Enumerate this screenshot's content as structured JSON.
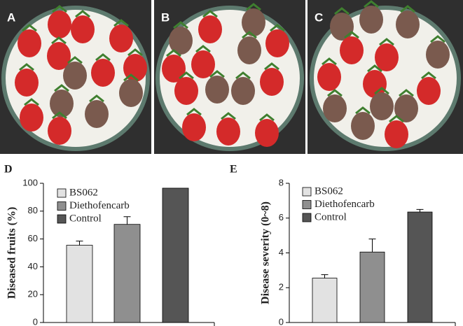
{
  "panels": [
    "A",
    "B",
    "C"
  ],
  "chart_data": [
    {
      "type": "bar",
      "panel_label": "D",
      "ylabel": "Diseased fruits (%)",
      "categories": [
        null
      ],
      "series": [
        {
          "name": "BS062",
          "color": "#e2e2e2",
          "values": [
            55.5
          ],
          "errors": [
            3
          ]
        },
        {
          "name": "Diethofencarb",
          "color": "#8f8f8f",
          "values": [
            70.5
          ],
          "errors": [
            5.5
          ]
        },
        {
          "name": "Control",
          "color": "#555555",
          "values": [
            96.5
          ]
        }
      ],
      "ylim": [
        0,
        100
      ],
      "yticks": [
        0,
        20,
        40,
        60,
        80,
        100
      ],
      "grid": false
    },
    {
      "type": "bar",
      "panel_label": "E",
      "ylabel": "Disease severity (0~8)",
      "categories": [
        null
      ],
      "series": [
        {
          "name": "BS062",
          "color": "#e2e2e2",
          "values": [
            2.55
          ],
          "errors": [
            0.2
          ]
        },
        {
          "name": "Diethofencarb",
          "color": "#8f8f8f",
          "values": [
            4.05
          ],
          "errors": [
            0.75
          ]
        },
        {
          "name": "Control",
          "color": "#555555",
          "values": [
            6.35
          ],
          "errors": [
            0.15
          ]
        }
      ],
      "ylim": [
        0,
        8
      ],
      "yticks": [
        0,
        2,
        4,
        6,
        8
      ],
      "grid": false
    }
  ]
}
